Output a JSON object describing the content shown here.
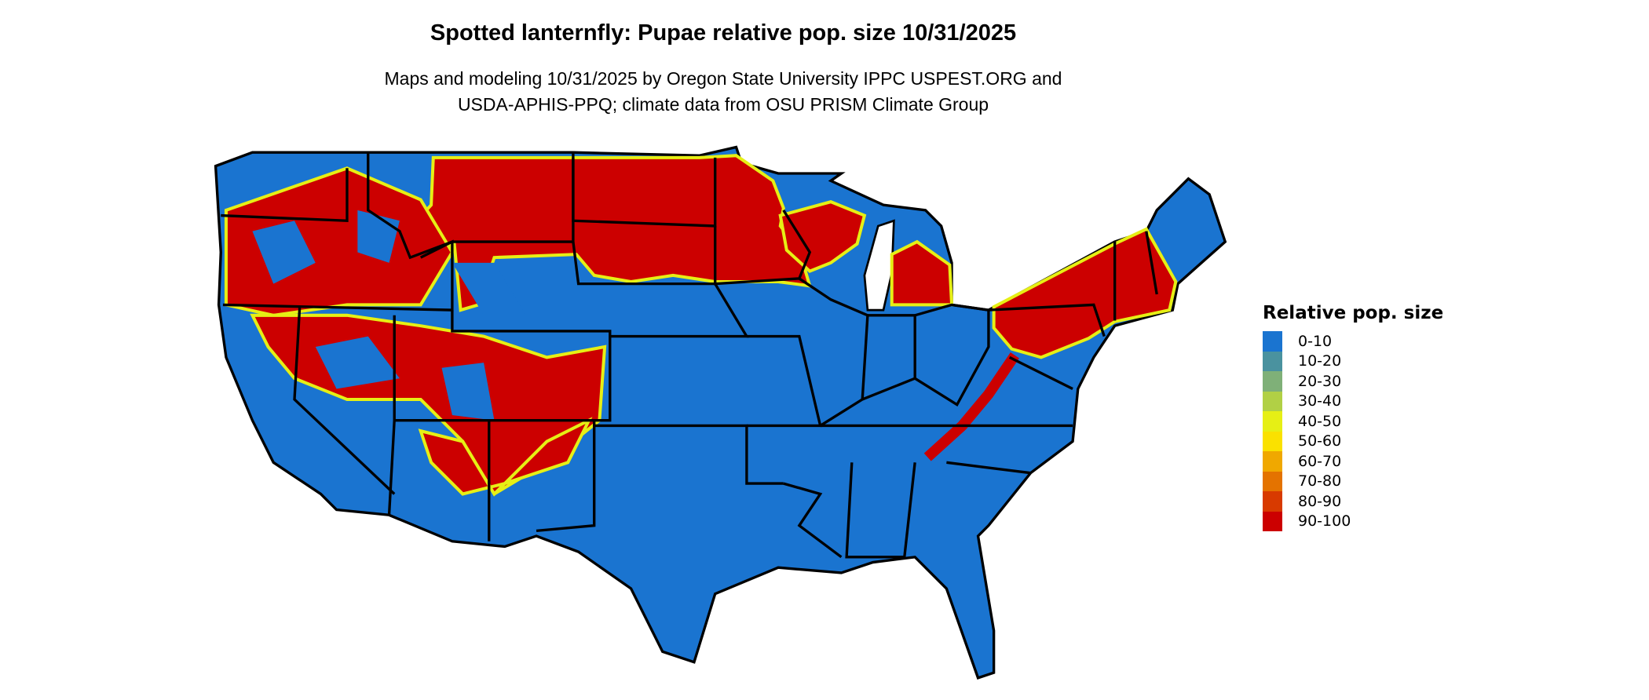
{
  "title": "Spotted lanternfly: Pupae relative pop. size 10/31/2025",
  "subtitle_lines": [
    "Maps and modeling 10/31/2025 by Oregon State University IPPC USPEST.ORG and",
    "USDA-APHIS-PPQ; climate data from OSU PRISM Climate Group"
  ],
  "legend": {
    "title": "Relative pop. size",
    "items": [
      {
        "label": "0-10",
        "color": "#1a74d0"
      },
      {
        "label": "10-20",
        "color": "#4a929f"
      },
      {
        "label": "20-30",
        "color": "#7fb078"
      },
      {
        "label": "30-40",
        "color": "#b1d045"
      },
      {
        "label": "40-50",
        "color": "#e6ef15"
      },
      {
        "label": "50-60",
        "color": "#fae100"
      },
      {
        "label": "60-70",
        "color": "#f0a800"
      },
      {
        "label": "70-80",
        "color": "#e47300"
      },
      {
        "label": "80-90",
        "color": "#d83a00"
      },
      {
        "label": "90-100",
        "color": "#cc0000"
      }
    ]
  }
}
